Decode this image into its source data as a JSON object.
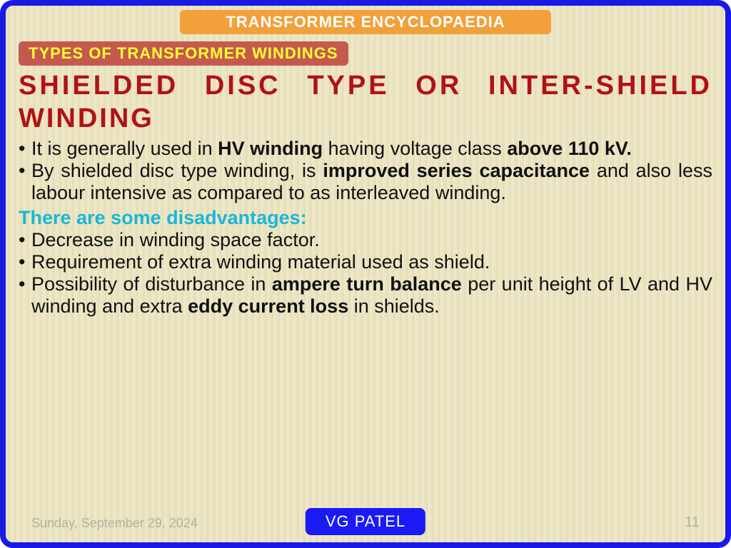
{
  "colors": {
    "border": "#1a1ae6",
    "bg_stripe_a": "#eae4c4",
    "bg_stripe_b": "#e6dfb9",
    "banner_top_bg": "#f2a03a",
    "banner_top_fg": "#ffffff",
    "banner_sub_bg": "#c45a4f",
    "banner_sub_fg": "#ffff33",
    "heading_fg": "#b11116",
    "subhead_fg": "#19b7d8",
    "author_bg": "#1a1af5",
    "author_fg": "#ffffff",
    "footer_fg": "#b2b29d",
    "body_fg": "#111111"
  },
  "banner_top": "TRANSFORMER ENCYCLOPAEDIA",
  "banner_sub": "TYPES OF TRANSFORMER WINDINGS",
  "heading_line1": "SHIELDED DISC TYPE OR INTER-SHIELD",
  "heading_line2": "WINDING",
  "bullets": {
    "b1_a": "It is generally used in ",
    "b1_b": "HV winding",
    "b1_c": " having voltage class ",
    "b1_d": "above 110 kV.",
    "b2_a": "By shielded disc type winding, is ",
    "b2_b": "improved series capaci­tance",
    "b2_c": " and also less labour intensive as compared to as interleaved winding.",
    "sub": "There are some disadvantages:",
    "b3": "Decrease in winding space factor.",
    "b4": "Requirement of extra winding material used as shield.",
    "b5_a": "Possibility of disturbance in ",
    "b5_b": "ampere turn balance",
    "b5_c": " per unit height of LV and HV winding and extra ",
    "b5_d": "eddy current loss",
    "b5_e": " in shields."
  },
  "footer": {
    "date": "Sunday, September 29, 2024",
    "author": "VG PATEL",
    "page": "11"
  }
}
